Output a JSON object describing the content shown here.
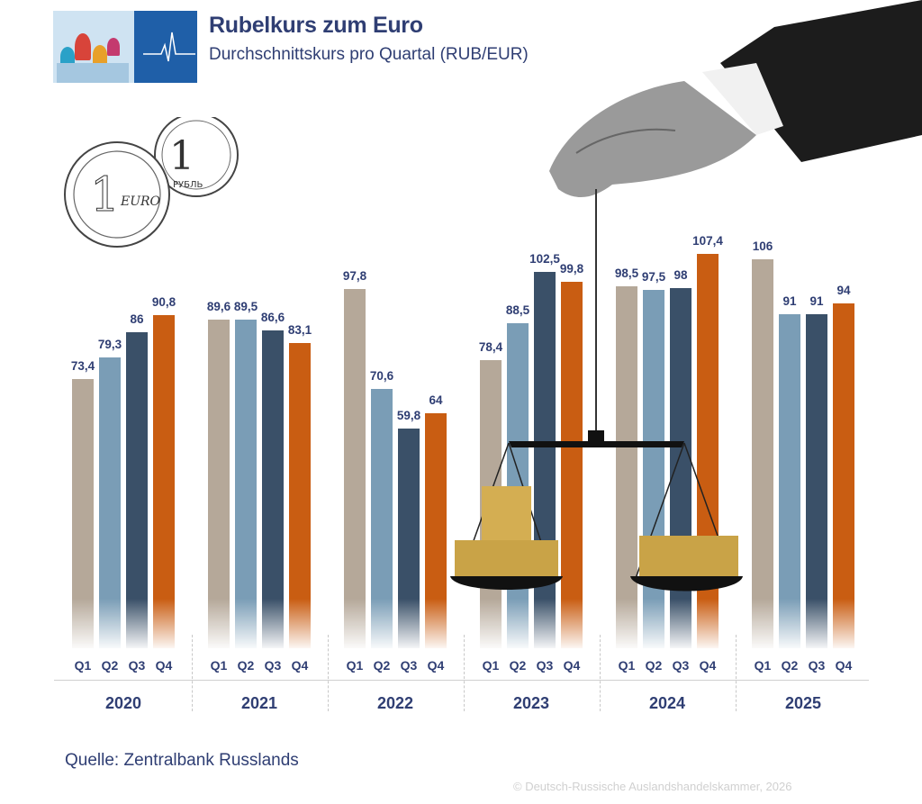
{
  "header": {
    "title": "Rubelkurs zum Euro",
    "subtitle": "Durchschnittskurs pro Quartal (RUB/EUR)"
  },
  "footer": {
    "source": "Quelle: Zentralbank Russlands",
    "copyright": "© Deutsch-Russische Auslandshandelskammer, 2026"
  },
  "colors": {
    "Q1": "#b5a899",
    "Q2": "#7a9db6",
    "Q3": "#3a5068",
    "Q4": "#c95d12",
    "text": "#2f3e73"
  },
  "chart_data": {
    "type": "bar",
    "title": "Rubelkurs zum Euro",
    "subtitle": "Durchschnittskurs pro Quartal (RUB/EUR)",
    "xlabel": "",
    "ylabel": "RUB/EUR",
    "grid": false,
    "legend": "none (quarter labels under bars)",
    "groups": [
      "2020",
      "2021",
      "2022",
      "2023",
      "2024",
      "2025"
    ],
    "quarters": [
      "Q1",
      "Q2",
      "Q3",
      "Q4"
    ],
    "series": [
      {
        "name": "Q1",
        "values": [
          73.4,
          89.6,
          97.8,
          78.4,
          98.5,
          106
        ]
      },
      {
        "name": "Q2",
        "values": [
          79.3,
          89.5,
          70.6,
          88.5,
          97.5,
          91
        ]
      },
      {
        "name": "Q3",
        "values": [
          86,
          86.6,
          59.8,
          102.5,
          98,
          91
        ]
      },
      {
        "name": "Q4",
        "values": [
          90.8,
          83.1,
          64,
          99.8,
          107.4,
          94
        ]
      }
    ],
    "labels": {
      "2020": [
        "73,4",
        "79,3",
        "86",
        "90,8"
      ],
      "2021": [
        "89,6",
        "89,5",
        "86,6",
        "83,1"
      ],
      "2022": [
        "97,8",
        "70,6",
        "59,8",
        "64"
      ],
      "2023": [
        "78,4",
        "88,5",
        "102,5",
        "99,8"
      ],
      "2024": [
        "98,5",
        "97,5",
        "98",
        "107,4"
      ],
      "2025": [
        "106",
        "91",
        "91",
        "94"
      ]
    },
    "source": "Quelle: Zentralbank Russlands"
  }
}
